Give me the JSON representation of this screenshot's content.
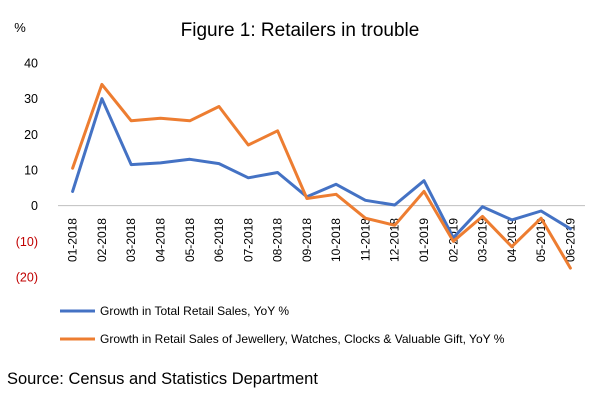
{
  "chart_data": {
    "type": "line",
    "title": "Figure 1: Retailers in trouble",
    "yunit": "%",
    "categories": [
      "01-2018",
      "02-2018",
      "03-2018",
      "04-2018",
      "05-2018",
      "06-2018",
      "07-2018",
      "08-2018",
      "09-2018",
      "10-2018",
      "11-2018",
      "12-2018",
      "01-2019",
      "02-2019",
      "03-2019",
      "04-2019",
      "05-2019",
      "06-2019"
    ],
    "series": [
      {
        "name": "Growth in Total Retail Sales, YoY %",
        "color": "#4472C4",
        "values": [
          4.0,
          30.0,
          11.5,
          12.0,
          13.0,
          11.8,
          7.8,
          9.3,
          2.5,
          6.0,
          1.5,
          0.2,
          7.0,
          -9.0,
          -0.3,
          -4.0,
          -1.5,
          -6.5
        ]
      },
      {
        "name": "Growth in Retail Sales of Jewellery, Watches, Clocks & Valuable Gift, YoY %",
        "color": "#ED7D31",
        "values": [
          10.5,
          34.0,
          23.8,
          24.5,
          23.8,
          27.8,
          17.0,
          21.0,
          2.0,
          3.2,
          -3.5,
          -5.5,
          4.0,
          -10.0,
          -3.0,
          -11.5,
          -3.5,
          -17.5
        ]
      }
    ],
    "yticks": [
      {
        "value": 40,
        "label": "40"
      },
      {
        "value": 30,
        "label": "30"
      },
      {
        "value": 20,
        "label": "20"
      },
      {
        "value": 10,
        "label": "10"
      },
      {
        "value": 0,
        "label": "0"
      },
      {
        "value": -10,
        "label": "(10)"
      },
      {
        "value": -20,
        "label": "(20)"
      }
    ],
    "ylim": [
      -20,
      40
    ],
    "negative_tick_color": "#C00000",
    "grid": false,
    "legend_position": "bottom"
  },
  "source": "Source: Census and Statistics Department"
}
